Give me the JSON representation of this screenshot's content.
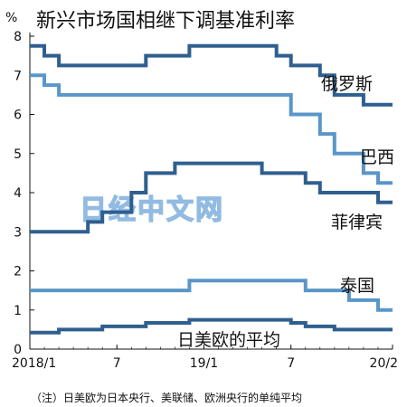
{
  "chart_data": {
    "type": "line",
    "step": true,
    "title": "新兴市场国相继下调基准利率",
    "unit": "%",
    "ylim": [
      0,
      8
    ],
    "yticks": [
      0,
      1,
      2,
      3,
      4,
      5,
      6,
      7,
      8
    ],
    "xlim": [
      "2018-01",
      "2020-02"
    ],
    "xticks": [
      {
        "x": "2018-01",
        "label": "2018/1"
      },
      {
        "x": "2018-07",
        "label": "7"
      },
      {
        "x": "2019-01",
        "label": "19/1"
      },
      {
        "x": "2019-07",
        "label": "7"
      },
      {
        "x": "2020-02",
        "label": "20/2"
      }
    ],
    "grid": false,
    "series": [
      {
        "name": "俄罗斯",
        "color": "#2f5f8f",
        "points": [
          [
            "2018-01",
            7.75
          ],
          [
            "2018-02",
            7.5
          ],
          [
            "2018-03",
            7.25
          ],
          [
            "2018-09",
            7.5
          ],
          [
            "2018-12",
            7.75
          ],
          [
            "2019-06",
            7.5
          ],
          [
            "2019-07",
            7.25
          ],
          [
            "2019-09",
            7.0
          ],
          [
            "2019-10",
            6.5
          ],
          [
            "2019-12",
            6.25
          ],
          [
            "2020-02",
            6.25
          ]
        ]
      },
      {
        "name": "巴西",
        "color": "#5a96c8",
        "points": [
          [
            "2018-01",
            7.0
          ],
          [
            "2018-02",
            6.75
          ],
          [
            "2018-03",
            6.5
          ],
          [
            "2019-07",
            6.0
          ],
          [
            "2019-09",
            5.5
          ],
          [
            "2019-10",
            5.0
          ],
          [
            "2019-12",
            4.5
          ],
          [
            "2020-01",
            4.25
          ],
          [
            "2020-02",
            4.25
          ]
        ]
      },
      {
        "name": "菲律宾",
        "color": "#2f5f8f",
        "points": [
          [
            "2018-01",
            3.0
          ],
          [
            "2018-05",
            3.25
          ],
          [
            "2018-06",
            3.5
          ],
          [
            "2018-08",
            4.0
          ],
          [
            "2018-09",
            4.5
          ],
          [
            "2018-11",
            4.75
          ],
          [
            "2019-05",
            4.5
          ],
          [
            "2019-08",
            4.25
          ],
          [
            "2019-09",
            4.0
          ],
          [
            "2019-12",
            4.0
          ],
          [
            "2020-01",
            3.75
          ],
          [
            "2020-02",
            3.75
          ]
        ]
      },
      {
        "name": "泰国",
        "color": "#5a96c8",
        "points": [
          [
            "2018-01",
            1.5
          ],
          [
            "2018-12",
            1.75
          ],
          [
            "2019-08",
            1.5
          ],
          [
            "2019-11",
            1.25
          ],
          [
            "2020-01",
            1.0
          ],
          [
            "2020-02",
            1.0
          ]
        ]
      },
      {
        "name": "日美欧的平均",
        "color": "#2f5f8f",
        "points": [
          [
            "2018-01",
            0.42
          ],
          [
            "2018-03",
            0.5
          ],
          [
            "2018-06",
            0.58
          ],
          [
            "2018-09",
            0.67
          ],
          [
            "2018-12",
            0.75
          ],
          [
            "2019-07",
            0.67
          ],
          [
            "2019-08",
            0.58
          ],
          [
            "2019-10",
            0.5
          ],
          [
            "2020-02",
            0.5
          ]
        ]
      }
    ],
    "watermark": "日经中文网",
    "note": "（注）日美欧为日本央行、美联储、欧洲央行的单纯平均"
  }
}
